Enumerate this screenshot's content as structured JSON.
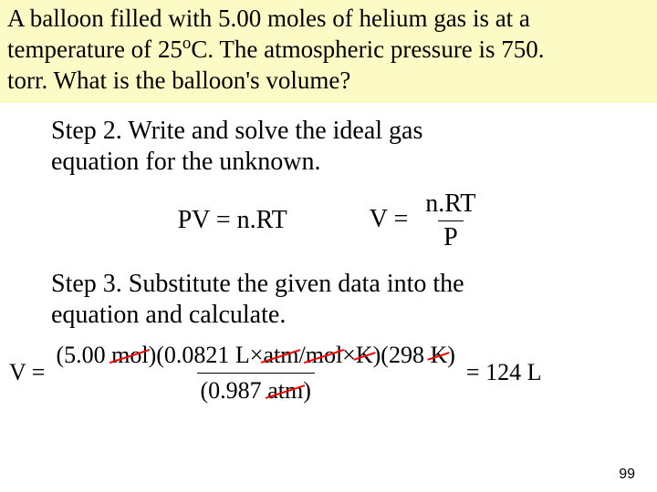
{
  "problem": {
    "line1_a": "A balloon filled with  5.00 moles of helium gas is at a",
    "line2_a": "temperature of 25",
    "line2_sup": "o",
    "line2_b": "C. The atmospheric pressure is 750.",
    "line3": "torr.  What is the balloon's volume?"
  },
  "step2": {
    "text_a": "Step 2. Write and solve the ideal gas",
    "text_b": "equation for the unknown."
  },
  "eq": {
    "left": "PV = n.RT",
    "v_eq": "V = ",
    "num": "n.RT",
    "den": "P"
  },
  "step3": {
    "text_a": "Step 3. Substitute the given data into the",
    "text_b": "equation and calculate."
  },
  "calc": {
    "v_eq": "V = ",
    "num_a": "(5.00 ",
    "num_mol": "mol",
    "num_b": ")(0.0821 L×",
    "num_atm": "atm",
    "num_c": "/",
    "num_mol2": "mol",
    "num_d": "×",
    "num_K": "K",
    "num_e": ")(298 ",
    "num_K2": "K",
    "num_f": ")",
    "den_a": "(0.987 ",
    "den_atm": "atm",
    "den_b": ")",
    "result": " = 124 L"
  },
  "page_number": "99",
  "colors": {
    "highlight_bg": "#fdfbc5",
    "strike": "#ff0000"
  }
}
